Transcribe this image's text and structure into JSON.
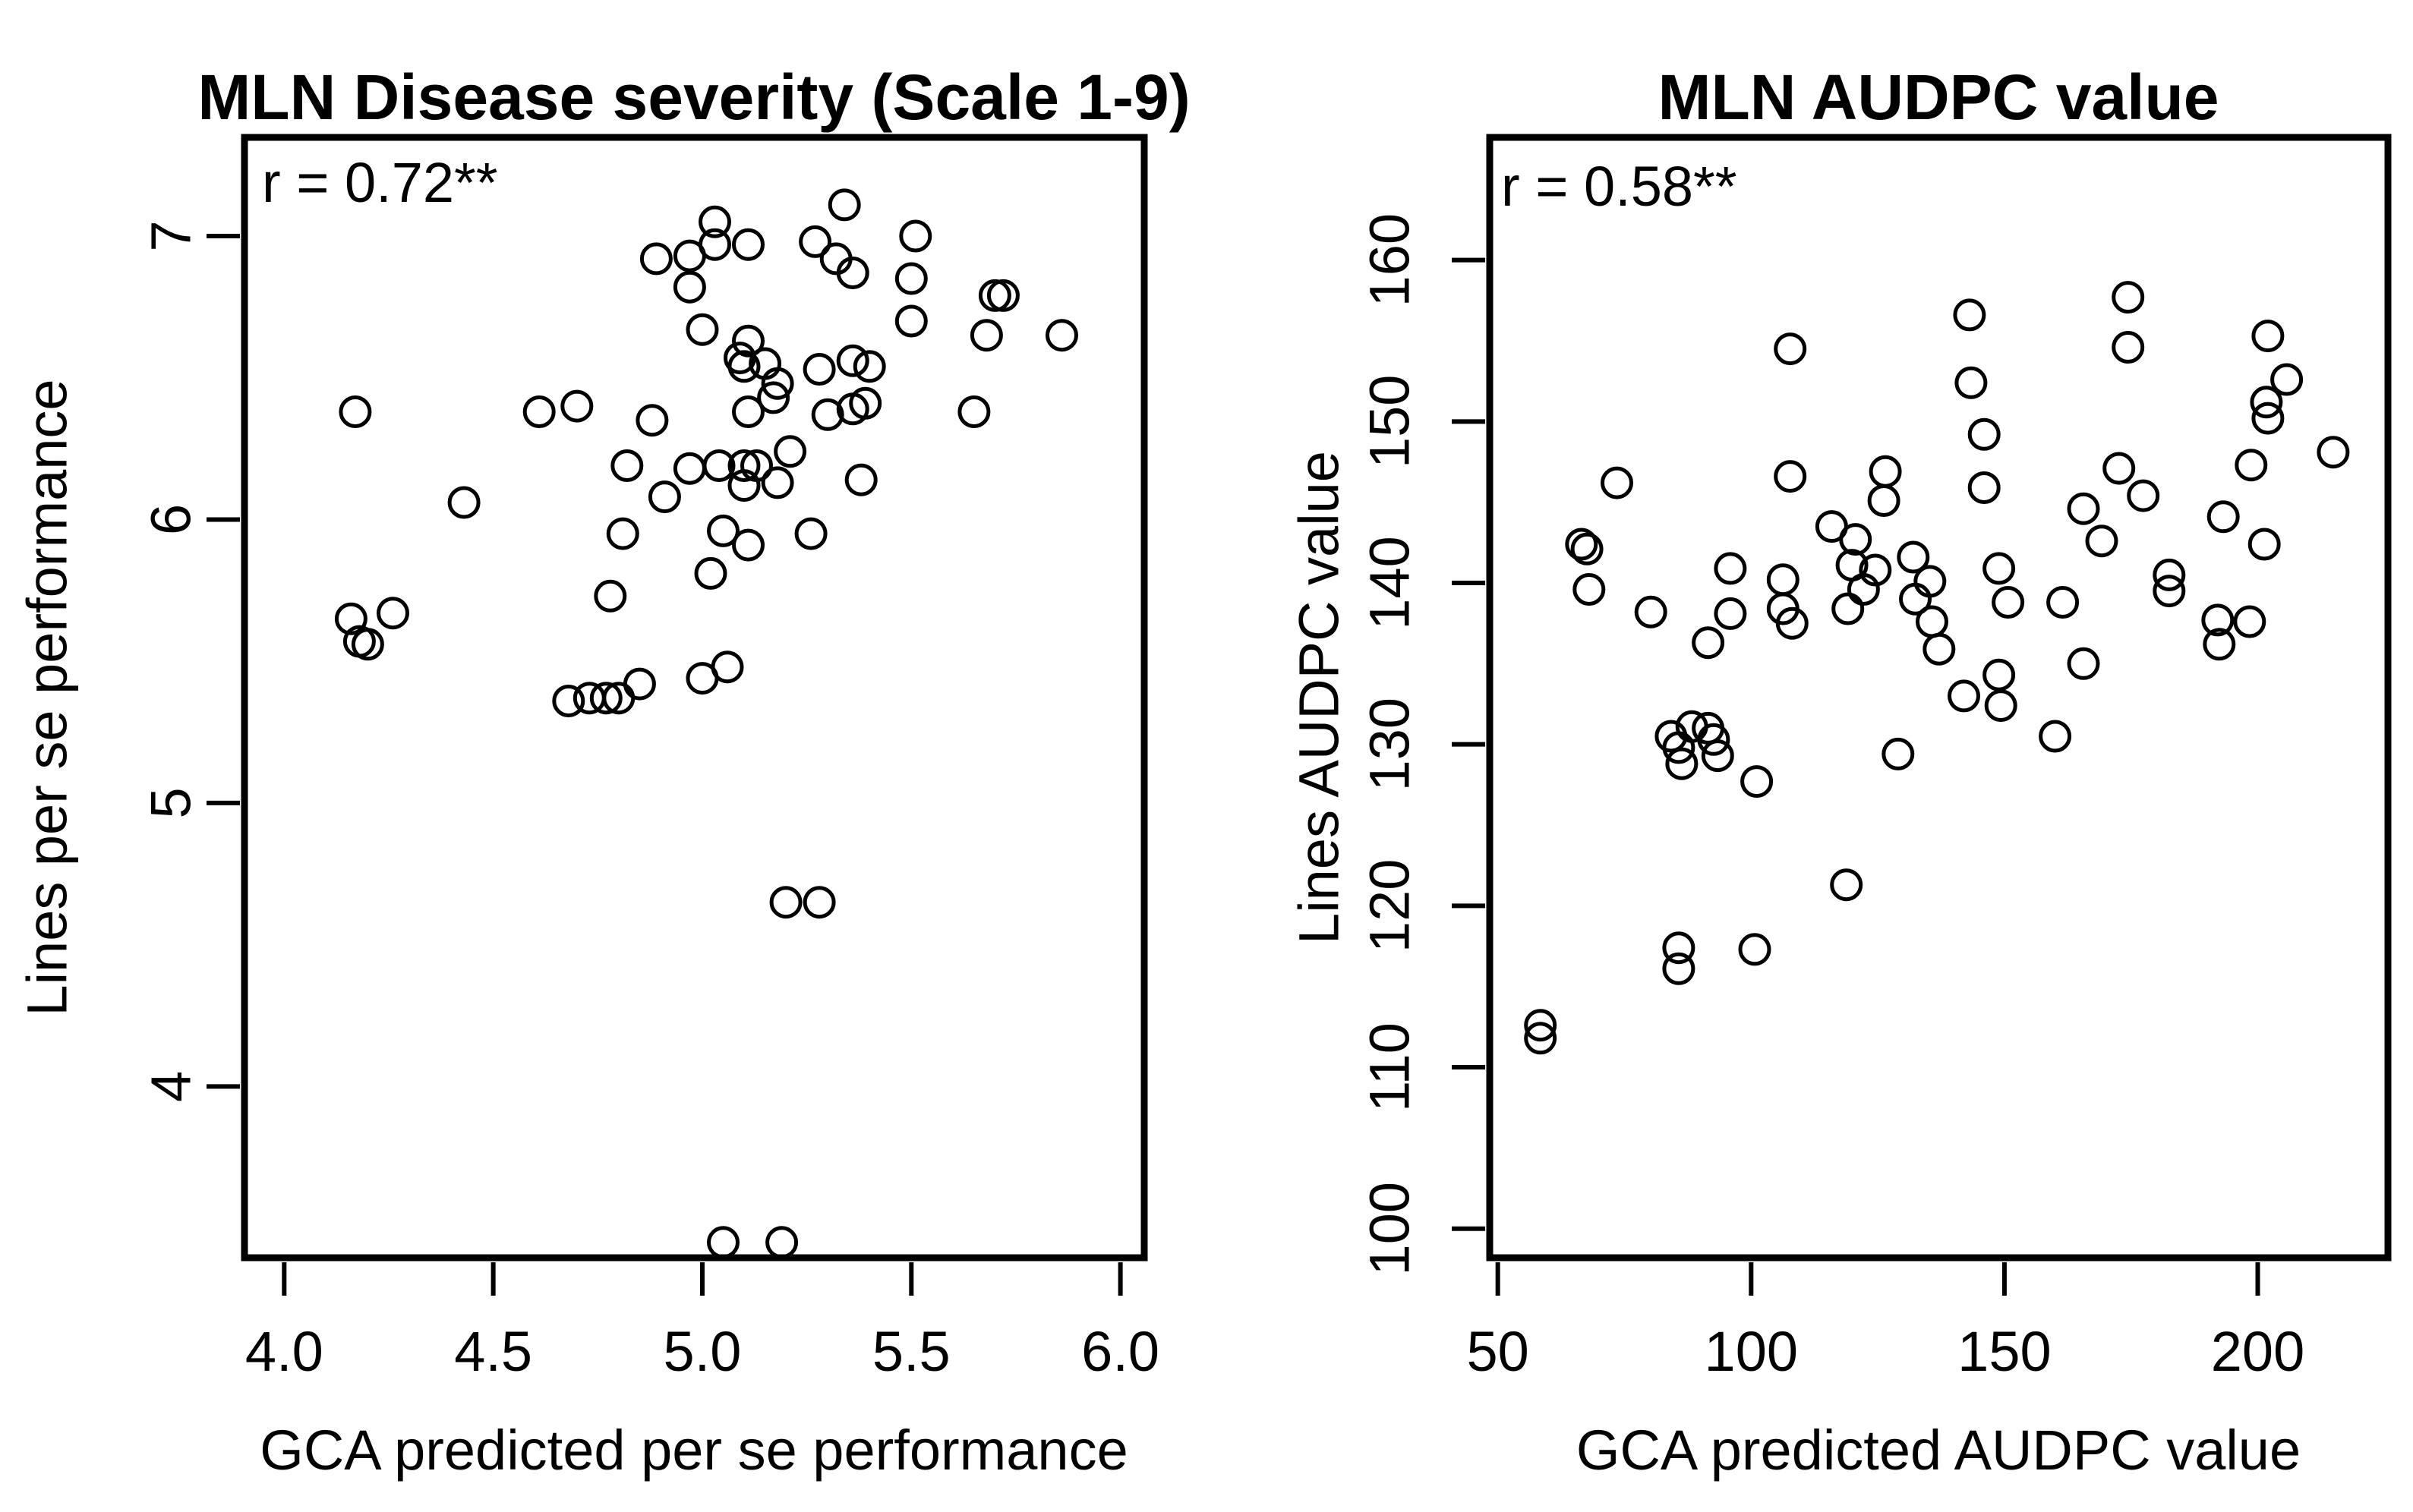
{
  "style": {
    "fg": "#000000",
    "bg": "#ffffff"
  },
  "chart_data": [
    {
      "type": "scatter",
      "title": "MLN Disease severity (Scale 1-9)",
      "annotation": "r = 0.72**",
      "xlabel": "GCA predicted per se performance",
      "ylabel": "Lines per se performance",
      "xlim": [
        3.905,
        6.057
      ],
      "ylim": [
        3.396,
        7.348
      ],
      "xticks": [
        4.0,
        4.5,
        5.0,
        5.5,
        6.0
      ],
      "xtick_labels": [
        "4.0",
        "4.5",
        "5.0",
        "5.5",
        "6.0"
      ],
      "yticks": [
        4,
        5,
        6,
        7
      ],
      "ytick_labels": [
        "4",
        "5",
        "6",
        "7"
      ],
      "grid": false,
      "legend": null,
      "marker": "open-circle",
      "points": [
        [
          4.17,
          6.38
        ],
        [
          4.61,
          6.38
        ],
        [
          4.7,
          6.4
        ],
        [
          4.88,
          6.35
        ],
        [
          4.82,
          6.19
        ],
        [
          4.97,
          6.18
        ],
        [
          5.04,
          6.19
        ],
        [
          5.1,
          6.19
        ],
        [
          5.13,
          6.19
        ],
        [
          5.21,
          6.24
        ],
        [
          5.1,
          6.12
        ],
        [
          5.18,
          6.13
        ],
        [
          4.91,
          6.08
        ],
        [
          4.43,
          6.06
        ],
        [
          4.81,
          5.95
        ],
        [
          5.05,
          5.96
        ],
        [
          5.11,
          5.91
        ],
        [
          5.26,
          5.95
        ],
        [
          5.02,
          5.81
        ],
        [
          4.78,
          5.73
        ],
        [
          4.16,
          5.65
        ],
        [
          4.26,
          5.67
        ],
        [
          4.18,
          5.57
        ],
        [
          4.2,
          5.56
        ],
        [
          4.68,
          5.36
        ],
        [
          4.73,
          5.37
        ],
        [
          4.77,
          5.37
        ],
        [
          4.8,
          5.37
        ],
        [
          4.85,
          5.42
        ],
        [
          5.0,
          5.44
        ],
        [
          5.06,
          5.48
        ],
        [
          5.03,
          7.05
        ],
        [
          5.03,
          6.97
        ],
        [
          4.89,
          6.92
        ],
        [
          4.97,
          6.93
        ],
        [
          5.11,
          6.97
        ],
        [
          5.27,
          6.98
        ],
        [
          4.97,
          6.82
        ],
        [
          5.0,
          6.67
        ],
        [
          5.11,
          6.63
        ],
        [
          5.09,
          6.57
        ],
        [
          5.1,
          6.54
        ],
        [
          5.15,
          6.55
        ],
        [
          5.18,
          6.48
        ],
        [
          5.17,
          6.43
        ],
        [
          5.11,
          6.38
        ],
        [
          5.34,
          7.11
        ],
        [
          5.32,
          6.92
        ],
        [
          5.36,
          6.87
        ],
        [
          5.51,
          7.0
        ],
        [
          5.5,
          6.85
        ],
        [
          5.5,
          6.7
        ],
        [
          5.7,
          6.79
        ],
        [
          5.72,
          6.79
        ],
        [
          5.68,
          6.65
        ],
        [
          5.86,
          6.65
        ],
        [
          5.65,
          6.38
        ],
        [
          5.36,
          6.56
        ],
        [
          5.4,
          6.54
        ],
        [
          5.28,
          6.53
        ],
        [
          5.3,
          6.37
        ],
        [
          5.36,
          6.39
        ],
        [
          5.39,
          6.41
        ],
        [
          5.38,
          6.14
        ],
        [
          5.2,
          4.65
        ],
        [
          5.28,
          4.65
        ],
        [
          5.05,
          3.45
        ],
        [
          5.19,
          3.45
        ]
      ]
    },
    {
      "type": "scatter",
      "title": "MLN AUDPC value",
      "annotation": "r = 0.58**",
      "xlabel": "GCA predicted AUDPC value",
      "ylabel": "Lines AUDPC value",
      "xlim": [
        48.4,
        225.7
      ],
      "ylim": [
        98.2,
        167.6
      ],
      "xticks": [
        50,
        100,
        150,
        200
      ],
      "xtick_labels": [
        "50",
        "100",
        "150",
        "200"
      ],
      "yticks": [
        100,
        110,
        120,
        130,
        140,
        150,
        160
      ],
      "ytick_labels": [
        "100",
        "110",
        "120",
        "130",
        "140",
        "150",
        "160"
      ],
      "grid": false,
      "legend": null,
      "marker": "open-circle",
      "points": [
        [
          143.1,
          156.6
        ],
        [
          107.7,
          154.5
        ],
        [
          143.4,
          152.4
        ],
        [
          146,
          149.2
        ],
        [
          73.5,
          146.2
        ],
        [
          107.7,
          146.6
        ],
        [
          126.5,
          146.9
        ],
        [
          146,
          145.9
        ],
        [
          126.2,
          145.1
        ],
        [
          115.9,
          143.5
        ],
        [
          120.6,
          142.7
        ],
        [
          132,
          141.6
        ],
        [
          135.3,
          140.1
        ],
        [
          119.9,
          141.1
        ],
        [
          124.5,
          140.8
        ],
        [
          122.2,
          139.6
        ],
        [
          66.5,
          142.4
        ],
        [
          67.6,
          142.1
        ],
        [
          68,
          139.6
        ],
        [
          80.2,
          138.2
        ],
        [
          95.9,
          140.9
        ],
        [
          106.3,
          140.2
        ],
        [
          106.3,
          138.4
        ],
        [
          108.1,
          137.5
        ],
        [
          95.9,
          138.1
        ],
        [
          91.5,
          136.3
        ],
        [
          119.1,
          138.4
        ],
        [
          132.4,
          139
        ],
        [
          135.7,
          137.6
        ],
        [
          148.9,
          140.9
        ],
        [
          150.7,
          138.8
        ],
        [
          161.5,
          138.8
        ],
        [
          137.1,
          135.9
        ],
        [
          174.4,
          157.7
        ],
        [
          174.4,
          154.6
        ],
        [
          202,
          155.3
        ],
        [
          205.7,
          152.6
        ],
        [
          201.7,
          151.2
        ],
        [
          202,
          150.2
        ],
        [
          198.7,
          147.3
        ],
        [
          214.9,
          148.1
        ],
        [
          172.6,
          147.1
        ],
        [
          177.4,
          145.4
        ],
        [
          193.2,
          144.1
        ],
        [
          165.6,
          144.6
        ],
        [
          169.2,
          142.6
        ],
        [
          201.3,
          142.4
        ],
        [
          182.5,
          140.5
        ],
        [
          182.5,
          139.5
        ],
        [
          192.1,
          137.7
        ],
        [
          198.4,
          137.6
        ],
        [
          192.4,
          136.2
        ],
        [
          165.6,
          135
        ],
        [
          142,
          133
        ],
        [
          148.9,
          134.3
        ],
        [
          149.3,
          132.4
        ],
        [
          160,
          130.5
        ],
        [
          84.2,
          130.5
        ],
        [
          88.3,
          131.1
        ],
        [
          91.5,
          131
        ],
        [
          85.7,
          129.8
        ],
        [
          86.3,
          128.8
        ],
        [
          92.6,
          130.3
        ],
        [
          93.4,
          129.3
        ],
        [
          101.1,
          127.7
        ],
        [
          129,
          129.4
        ],
        [
          118.8,
          121.3
        ],
        [
          85.7,
          117.4
        ],
        [
          85.7,
          116.1
        ],
        [
          100.7,
          117.3
        ],
        [
          58.4,
          112.6
        ],
        [
          58.4,
          111.8
        ]
      ]
    }
  ]
}
